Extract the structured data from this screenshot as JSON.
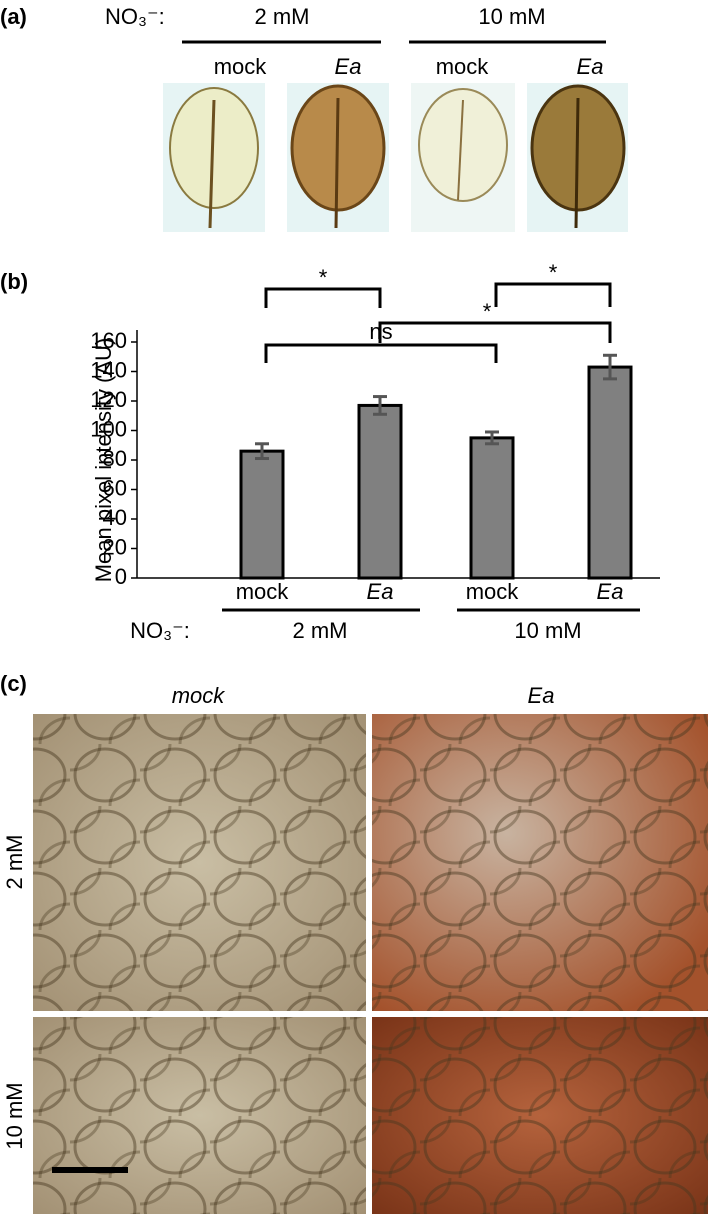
{
  "panel_a": {
    "label": "(a)",
    "nitrate_label": "NO₃⁻:",
    "groups": [
      "2 mM",
      "10 mM"
    ],
    "treatments": [
      "mock",
      "Ea",
      "mock",
      "Ea"
    ]
  },
  "chart_data": {
    "type": "bar",
    "panel_label": "(b)",
    "ylabel": "Mean pixel intensity (AU)",
    "categories": [
      "mock",
      "Ea",
      "mock",
      "Ea"
    ],
    "values": [
      86,
      117,
      95,
      143
    ],
    "errors": [
      5,
      6,
      4,
      8
    ],
    "color": "#808080",
    "ylim": [
      0,
      160
    ],
    "yticks": [
      0,
      20,
      40,
      60,
      80,
      100,
      120,
      140,
      160
    ],
    "groups": [
      "2 mM",
      "10 mM"
    ],
    "group_factor_label": "NO₃⁻:",
    "annotations": [
      "*",
      "*",
      "*",
      "ns"
    ]
  },
  "panel_c": {
    "label": "(c)",
    "columns": [
      "mock",
      "Ea"
    ],
    "rows": [
      "2 mM",
      "10 mM"
    ]
  }
}
